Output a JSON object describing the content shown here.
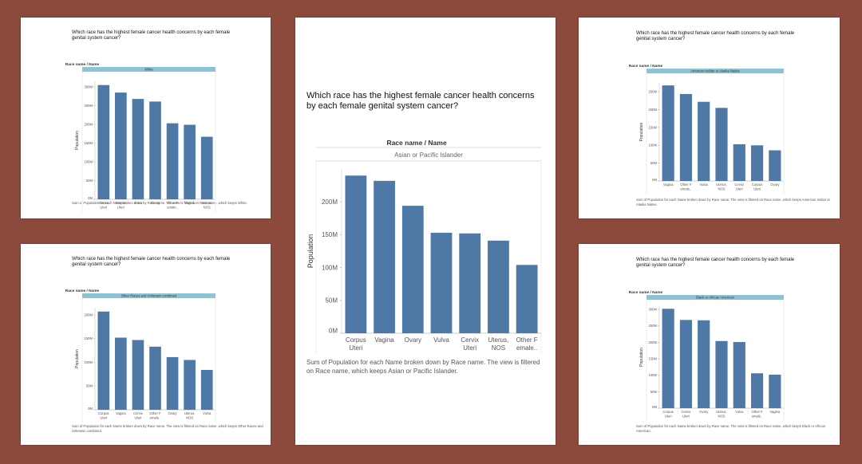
{
  "colors": {
    "background": "#8b4a3c",
    "card": "#ffffff",
    "bar": "#4e79a7",
    "header_band": "#8dc4d5"
  },
  "chart_data": [
    {
      "type": "bar",
      "title": "Which race has the highest female cancer health concerns by each female genital system cancer?",
      "header": "Race name / Name",
      "filter_value": "White",
      "ylabel": "Population",
      "categories": [
        "Cervix Uteri",
        "Corpus Uteri",
        "Vulva",
        "Ovary",
        "Other Female..",
        "Vagina",
        "Uterus, NOS"
      ],
      "values": [
        305,
        285,
        268,
        261,
        203,
        199,
        167
      ],
      "ylim": [
        0,
        315
      ],
      "ticks": [
        0,
        50,
        100,
        150,
        200,
        250,
        300
      ],
      "tick_labels": [
        "0M",
        "50M",
        "100M",
        "150M",
        "200M",
        "250M",
        "300M"
      ],
      "caption": "Sum of Population for each Name broken down by Race name. The view is filtered on Race name, which keeps White."
    },
    {
      "type": "bar",
      "title": "Which race has the highest female cancer health concerns by each female genital system cancer?",
      "header": "Race name / Name",
      "filter_value": "Other Races and Unknown combined",
      "ylabel": "Population",
      "categories": [
        "Corpus Uteri",
        "Vagina",
        "Cervix Uteri",
        "Other Female..",
        "Ovary",
        "Uterus, NOS",
        "Vulva"
      ],
      "values": [
        207,
        152,
        147,
        133,
        111,
        105,
        84
      ],
      "ylim": [
        0,
        215
      ],
      "ticks": [
        0,
        50,
        100,
        150,
        200
      ],
      "tick_labels": [
        "0M",
        "50M",
        "100M",
        "150M",
        "200M"
      ],
      "caption": "Sum of Population for each Name broken down by Race name. The view is filtered on Race name, which keeps Other Races and Unknown combined."
    },
    {
      "type": "bar",
      "title": "Which race has the highest female cancer health concerns by each female genital system cancer?",
      "header": "Race name / Name",
      "filter_value": "Asian or Pacific Islander",
      "ylabel": "Population",
      "categories": [
        "Corpus Uteri",
        "Vagina",
        "Ovary",
        "Vulva",
        "Cervix Uteri",
        "Uterus, NOS",
        "Other Female.."
      ],
      "values": [
        240,
        232,
        194,
        153,
        152,
        141,
        104
      ],
      "ylim": [
        0,
        250
      ],
      "ticks": [
        0,
        50,
        100,
        150,
        200
      ],
      "tick_labels": [
        "0M",
        "50M",
        "100M",
        "150M",
        "200M"
      ],
      "caption": "Sum of Population for each Name broken down by Race name. The view is filtered on Race name, which keeps Asian or Pacific Islander."
    },
    {
      "type": "bar",
      "title": "Which race has the highest female cancer health concerns by each female genital system cancer?",
      "header": "Race name / Name",
      "filter_value": "American Indian or Alaska Native",
      "ylabel": "Population",
      "categories": [
        "Vagina",
        "Other Female..",
        "Vulva",
        "Uterus, NOS",
        "Cervix Uteri",
        "Corpus Uteri",
        "Ovary"
      ],
      "values": [
        268,
        244,
        222,
        205,
        103,
        100,
        86
      ],
      "ylim": [
        0,
        275
      ],
      "ticks": [
        0,
        50,
        100,
        150,
        200,
        250
      ],
      "tick_labels": [
        "0M",
        "50M",
        "100M",
        "150M",
        "200M",
        "250M"
      ],
      "caption": "Sum of Population for each Name broken down by Race name. The view is filtered on Race name, which keeps American Indian or Alaska Native."
    },
    {
      "type": "bar",
      "title": "Which race has the highest female cancer health concerns by each female genital system cancer?",
      "header": "Race name / Name",
      "filter_value": "Black or African American",
      "ylabel": "Population",
      "categories": [
        "Corpus Uteri",
        "Cervix Uteri",
        "Ovary",
        "Uterus, NOS",
        "Vulva",
        "Other Female..",
        "Vagina"
      ],
      "values": [
        302,
        268,
        267,
        204,
        201,
        106,
        102
      ],
      "ylim": [
        0,
        310
      ],
      "ticks": [
        0,
        50,
        100,
        150,
        200,
        250,
        300
      ],
      "tick_labels": [
        "0M",
        "50M",
        "100M",
        "150M",
        "200M",
        "250M",
        "300M"
      ],
      "caption": "Sum of Population for each Name broken down by Race name. The view is filtered on Race name, which keeps Black or African American."
    }
  ]
}
